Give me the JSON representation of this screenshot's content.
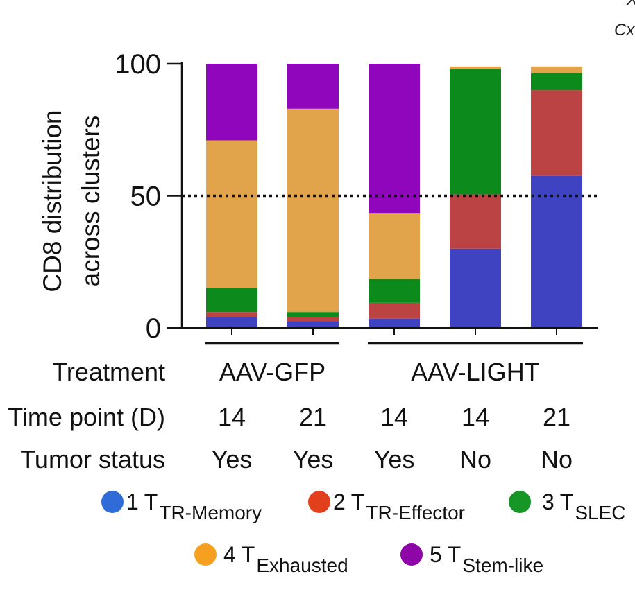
{
  "corner_text": {
    "top": "X",
    "cx": "Cx"
  },
  "chart_data": {
    "type": "stacked-bar",
    "ylabel_lines": [
      "CD8 distribution",
      "across clusters"
    ],
    "ylim": [
      0,
      100
    ],
    "yticks": [
      0,
      50,
      100
    ],
    "reference_line": {
      "value": 50,
      "style": "dotted"
    },
    "bars": [
      "AAV-GFP D14",
      "AAV-GFP D21",
      "AAV-LIGHT D14 Yes",
      "AAV-LIGHT D14 No",
      "AAV-LIGHT D21 No"
    ],
    "series": [
      {
        "name": "1 T TR-Memory",
        "color": "#3f43c2",
        "values": [
          4,
          2.5,
          3.5,
          30,
          57.5
        ]
      },
      {
        "name": "2 T TR-Effector",
        "color": "#bb4343",
        "values": [
          2,
          1.5,
          6,
          20.5,
          32.5
        ]
      },
      {
        "name": "3 T SLEC",
        "color": "#0d8a1c",
        "values": [
          9,
          2,
          9,
          47.5,
          6.5
        ]
      },
      {
        "name": "4 T Exhausted",
        "color": "#e2a44b",
        "values": [
          56,
          77,
          25,
          1,
          2.5
        ]
      },
      {
        "name": "5 T Stem-like",
        "color": "#8f06bd",
        "values": [
          29,
          17,
          56.5,
          0,
          0
        ]
      }
    ],
    "rows": [
      {
        "label": "Treatment",
        "groups": [
          {
            "label": "AAV-GFP",
            "span": [
              0,
              1
            ]
          },
          {
            "label": "AAV-LIGHT",
            "span": [
              2,
              4
            ]
          }
        ]
      },
      {
        "label": "Time point (D)",
        "values": [
          "14",
          "21",
          "14",
          "14",
          "21"
        ]
      },
      {
        "label": "Tumor status",
        "values": [
          "Yes",
          "Yes",
          "Yes",
          "No",
          "No"
        ]
      }
    ]
  },
  "legend": [
    {
      "num": "1",
      "t": "T",
      "sub": "TR-Memory",
      "color": "#2f6cd8"
    },
    {
      "num": "2",
      "t": "T",
      "sub": "TR-Effector",
      "color": "#e2401c"
    },
    {
      "num": "3",
      "t": "T",
      "sub": "SLEC",
      "color": "#159627"
    },
    {
      "num": "4",
      "t": "T",
      "sub": "Exhausted",
      "color": "#f6a021"
    },
    {
      "num": "5",
      "t": "T",
      "sub": "Stem-like",
      "color": "#8f06a8"
    }
  ]
}
